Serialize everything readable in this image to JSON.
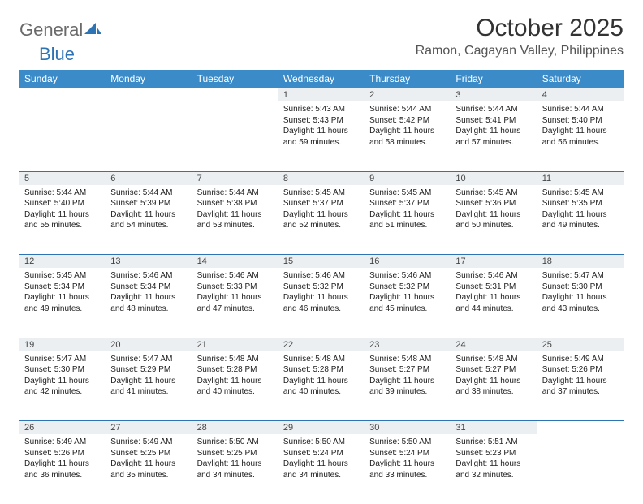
{
  "brand": {
    "general": "General",
    "blue": "Blue"
  },
  "title": "October 2025",
  "location": "Ramon, Cagayan Valley, Philippines",
  "colors": {
    "header_bg": "#3b8bc9",
    "border": "#2e74b5",
    "daynum_bg": "#eceff1",
    "logo_gray": "#6a6a6a",
    "logo_blue": "#2e74b5"
  },
  "weekdays": [
    "Sunday",
    "Monday",
    "Tuesday",
    "Wednesday",
    "Thursday",
    "Friday",
    "Saturday"
  ],
  "weeks": [
    [
      null,
      null,
      null,
      {
        "d": "1",
        "sr": "5:43 AM",
        "ss": "5:43 PM",
        "dl": "11 hours and 59 minutes."
      },
      {
        "d": "2",
        "sr": "5:44 AM",
        "ss": "5:42 PM",
        "dl": "11 hours and 58 minutes."
      },
      {
        "d": "3",
        "sr": "5:44 AM",
        "ss": "5:41 PM",
        "dl": "11 hours and 57 minutes."
      },
      {
        "d": "4",
        "sr": "5:44 AM",
        "ss": "5:40 PM",
        "dl": "11 hours and 56 minutes."
      }
    ],
    [
      {
        "d": "5",
        "sr": "5:44 AM",
        "ss": "5:40 PM",
        "dl": "11 hours and 55 minutes."
      },
      {
        "d": "6",
        "sr": "5:44 AM",
        "ss": "5:39 PM",
        "dl": "11 hours and 54 minutes."
      },
      {
        "d": "7",
        "sr": "5:44 AM",
        "ss": "5:38 PM",
        "dl": "11 hours and 53 minutes."
      },
      {
        "d": "8",
        "sr": "5:45 AM",
        "ss": "5:37 PM",
        "dl": "11 hours and 52 minutes."
      },
      {
        "d": "9",
        "sr": "5:45 AM",
        "ss": "5:37 PM",
        "dl": "11 hours and 51 minutes."
      },
      {
        "d": "10",
        "sr": "5:45 AM",
        "ss": "5:36 PM",
        "dl": "11 hours and 50 minutes."
      },
      {
        "d": "11",
        "sr": "5:45 AM",
        "ss": "5:35 PM",
        "dl": "11 hours and 49 minutes."
      }
    ],
    [
      {
        "d": "12",
        "sr": "5:45 AM",
        "ss": "5:34 PM",
        "dl": "11 hours and 49 minutes."
      },
      {
        "d": "13",
        "sr": "5:46 AM",
        "ss": "5:34 PM",
        "dl": "11 hours and 48 minutes."
      },
      {
        "d": "14",
        "sr": "5:46 AM",
        "ss": "5:33 PM",
        "dl": "11 hours and 47 minutes."
      },
      {
        "d": "15",
        "sr": "5:46 AM",
        "ss": "5:32 PM",
        "dl": "11 hours and 46 minutes."
      },
      {
        "d": "16",
        "sr": "5:46 AM",
        "ss": "5:32 PM",
        "dl": "11 hours and 45 minutes."
      },
      {
        "d": "17",
        "sr": "5:46 AM",
        "ss": "5:31 PM",
        "dl": "11 hours and 44 minutes."
      },
      {
        "d": "18",
        "sr": "5:47 AM",
        "ss": "5:30 PM",
        "dl": "11 hours and 43 minutes."
      }
    ],
    [
      {
        "d": "19",
        "sr": "5:47 AM",
        "ss": "5:30 PM",
        "dl": "11 hours and 42 minutes."
      },
      {
        "d": "20",
        "sr": "5:47 AM",
        "ss": "5:29 PM",
        "dl": "11 hours and 41 minutes."
      },
      {
        "d": "21",
        "sr": "5:48 AM",
        "ss": "5:28 PM",
        "dl": "11 hours and 40 minutes."
      },
      {
        "d": "22",
        "sr": "5:48 AM",
        "ss": "5:28 PM",
        "dl": "11 hours and 40 minutes."
      },
      {
        "d": "23",
        "sr": "5:48 AM",
        "ss": "5:27 PM",
        "dl": "11 hours and 39 minutes."
      },
      {
        "d": "24",
        "sr": "5:48 AM",
        "ss": "5:27 PM",
        "dl": "11 hours and 38 minutes."
      },
      {
        "d": "25",
        "sr": "5:49 AM",
        "ss": "5:26 PM",
        "dl": "11 hours and 37 minutes."
      }
    ],
    [
      {
        "d": "26",
        "sr": "5:49 AM",
        "ss": "5:26 PM",
        "dl": "11 hours and 36 minutes."
      },
      {
        "d": "27",
        "sr": "5:49 AM",
        "ss": "5:25 PM",
        "dl": "11 hours and 35 minutes."
      },
      {
        "d": "28",
        "sr": "5:50 AM",
        "ss": "5:25 PM",
        "dl": "11 hours and 34 minutes."
      },
      {
        "d": "29",
        "sr": "5:50 AM",
        "ss": "5:24 PM",
        "dl": "11 hours and 34 minutes."
      },
      {
        "d": "30",
        "sr": "5:50 AM",
        "ss": "5:24 PM",
        "dl": "11 hours and 33 minutes."
      },
      {
        "d": "31",
        "sr": "5:51 AM",
        "ss": "5:23 PM",
        "dl": "11 hours and 32 minutes."
      },
      null
    ]
  ],
  "labels": {
    "sunrise": "Sunrise:",
    "sunset": "Sunset:",
    "daylight": "Daylight:"
  }
}
